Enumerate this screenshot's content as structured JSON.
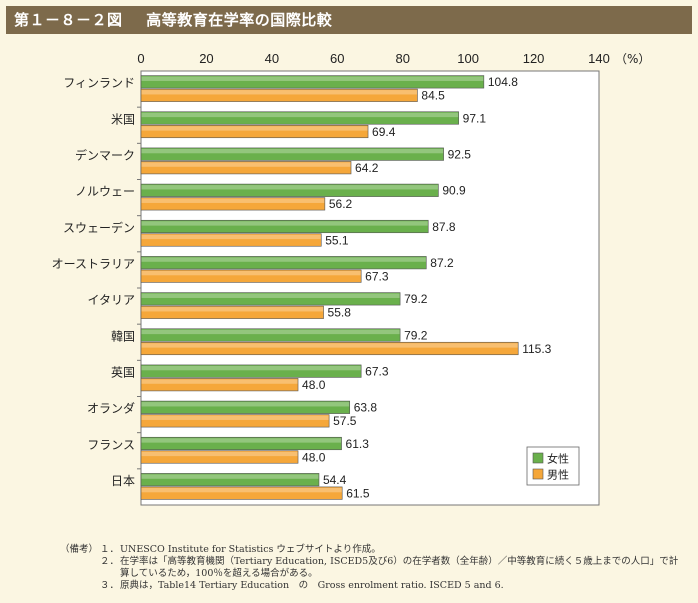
{
  "title": {
    "figure_number": "第１－８－２図",
    "text": "高等教育在学率の国際比較"
  },
  "chart_data": {
    "type": "bar",
    "orientation": "horizontal",
    "categories": [
      "フィンランド",
      "米国",
      "デンマーク",
      "ノルウェー",
      "スウェーデン",
      "オーストラリア",
      "イタリア",
      "韓国",
      "英国",
      "オランダ",
      "フランス",
      "日本"
    ],
    "series": [
      {
        "name": "女性",
        "color": "#6ab04c",
        "values": [
          104.8,
          97.1,
          92.5,
          90.9,
          87.8,
          87.2,
          79.2,
          79.2,
          67.3,
          63.8,
          61.3,
          54.4
        ],
        "labels": [
          "104.8",
          "97.1",
          "92.5",
          "90.9",
          "87.8",
          "87.2",
          "79.2",
          "79.2",
          "67.3",
          "63.8",
          "61.3",
          "54.4"
        ]
      },
      {
        "name": "男性",
        "color": "#f5a73a",
        "values": [
          84.5,
          69.4,
          64.2,
          56.2,
          55.1,
          67.3,
          55.8,
          115.3,
          48.0,
          57.5,
          48.0,
          61.5
        ],
        "labels": [
          "84.5",
          "69.4",
          "64.2",
          "56.2",
          "55.1",
          "67.3",
          "55.8",
          "115.3",
          "48.0",
          "57.5",
          "48.0",
          "61.5"
        ]
      }
    ],
    "xlim": [
      0,
      140
    ],
    "xticks": [
      "0",
      "20",
      "40",
      "60",
      "80",
      "100",
      "120",
      "140"
    ],
    "unit": "（%）",
    "legend_position": "bottom-right",
    "grid": false
  },
  "notes": {
    "header": "（備考）",
    "items": [
      {
        "num": "１．",
        "text": "UNESCO Institute for Statistics ウェブサイトより作成。"
      },
      {
        "num": "２．",
        "text": "在学率は「高等教育機関（Tertiary Education, ISCED5及び6）の在学者数（全年齢）／中等教育に続く５歳上までの人口」で計算しているため，100％を超える場合がある。"
      },
      {
        "num": "３．",
        "text": "原典は，Table14 Tertiary Education　の　Gross enrolment ratio. ISCED 5 and 6."
      }
    ]
  }
}
